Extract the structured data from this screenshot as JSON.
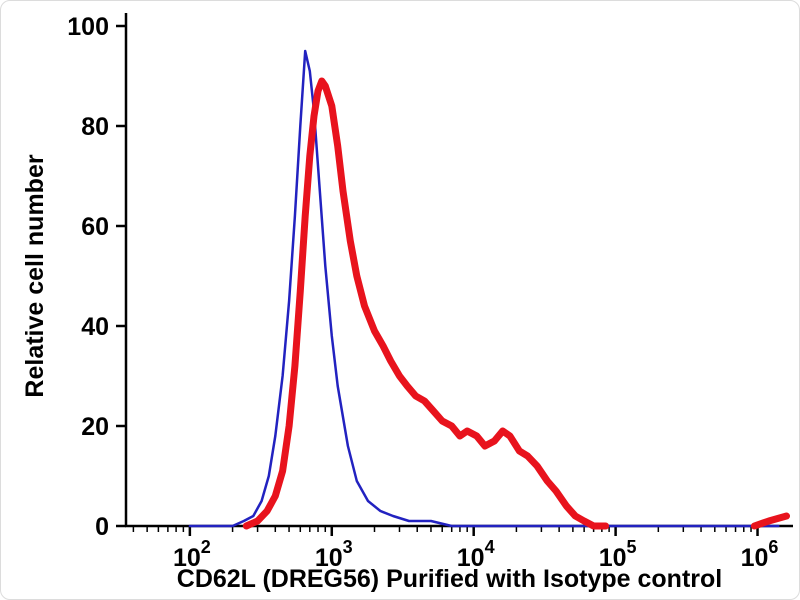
{
  "chart_data": {
    "type": "line",
    "title": "",
    "xlabel": "CD62L (DREG56) Purified with Isotype control",
    "ylabel": "Relative cell number",
    "x_scale": "log",
    "x_range_log": [
      1.55,
      6.25
    ],
    "ylim": [
      0,
      100
    ],
    "y_ticks": [
      0,
      20,
      40,
      60,
      80,
      100
    ],
    "x_major_ticks": [
      {
        "base": "10",
        "exp": 2
      },
      {
        "base": "10",
        "exp": 3
      },
      {
        "base": "10",
        "exp": 4
      },
      {
        "base": "10",
        "exp": 5
      },
      {
        "base": "10",
        "exp": 6
      }
    ],
    "grid": false,
    "legend": "none",
    "axis_color": "#000000",
    "series": [
      {
        "name": "Isotype control",
        "color": "#2222c0",
        "stroke_width": 2.5,
        "x": [
          100,
          200,
          240,
          280,
          320,
          360,
          400,
          450,
          500,
          550,
          600,
          650,
          700,
          750,
          800,
          900,
          1000,
          1100,
          1300,
          1500,
          1800,
          2200,
          2700,
          3500,
          5000,
          7000,
          10000,
          30000,
          100000,
          400000,
          1400000
        ],
        "y": [
          0,
          0,
          1,
          2,
          5,
          10,
          18,
          30,
          45,
          62,
          80,
          95,
          91,
          83,
          72,
          52,
          38,
          28,
          16,
          9,
          5,
          3,
          2,
          1,
          1,
          0,
          0,
          0,
          0,
          0,
          0
        ]
      },
      {
        "name": "CD62L (DREG56) Purified",
        "color": "#e8131d",
        "stroke_width": 7,
        "x": [
          250,
          300,
          350,
          400,
          450,
          500,
          550,
          600,
          650,
          700,
          750,
          800,
          850,
          900,
          1000,
          1100,
          1200,
          1350,
          1500,
          1700,
          2000,
          2300,
          2600,
          3000,
          3400,
          3900,
          4500,
          5200,
          6000,
          7000,
          8000,
          9000,
          10500,
          12000,
          14000,
          16000,
          18000,
          21000,
          24000,
          28000,
          33000,
          38000,
          45000,
          52000,
          60000,
          70000,
          85000,
          null,
          950000,
          1200000,
          1600000
        ],
        "y": [
          0,
          1,
          3,
          6,
          11,
          20,
          32,
          47,
          62,
          74,
          82,
          87,
          89,
          88,
          84,
          76,
          67,
          57,
          50,
          44,
          39,
          36,
          33,
          30,
          28,
          26,
          25,
          23,
          21,
          20,
          18,
          19,
          18,
          16,
          17,
          19,
          18,
          15,
          14,
          12,
          9,
          7,
          4,
          2,
          1,
          0,
          0,
          null,
          0,
          1,
          2
        ]
      }
    ]
  }
}
